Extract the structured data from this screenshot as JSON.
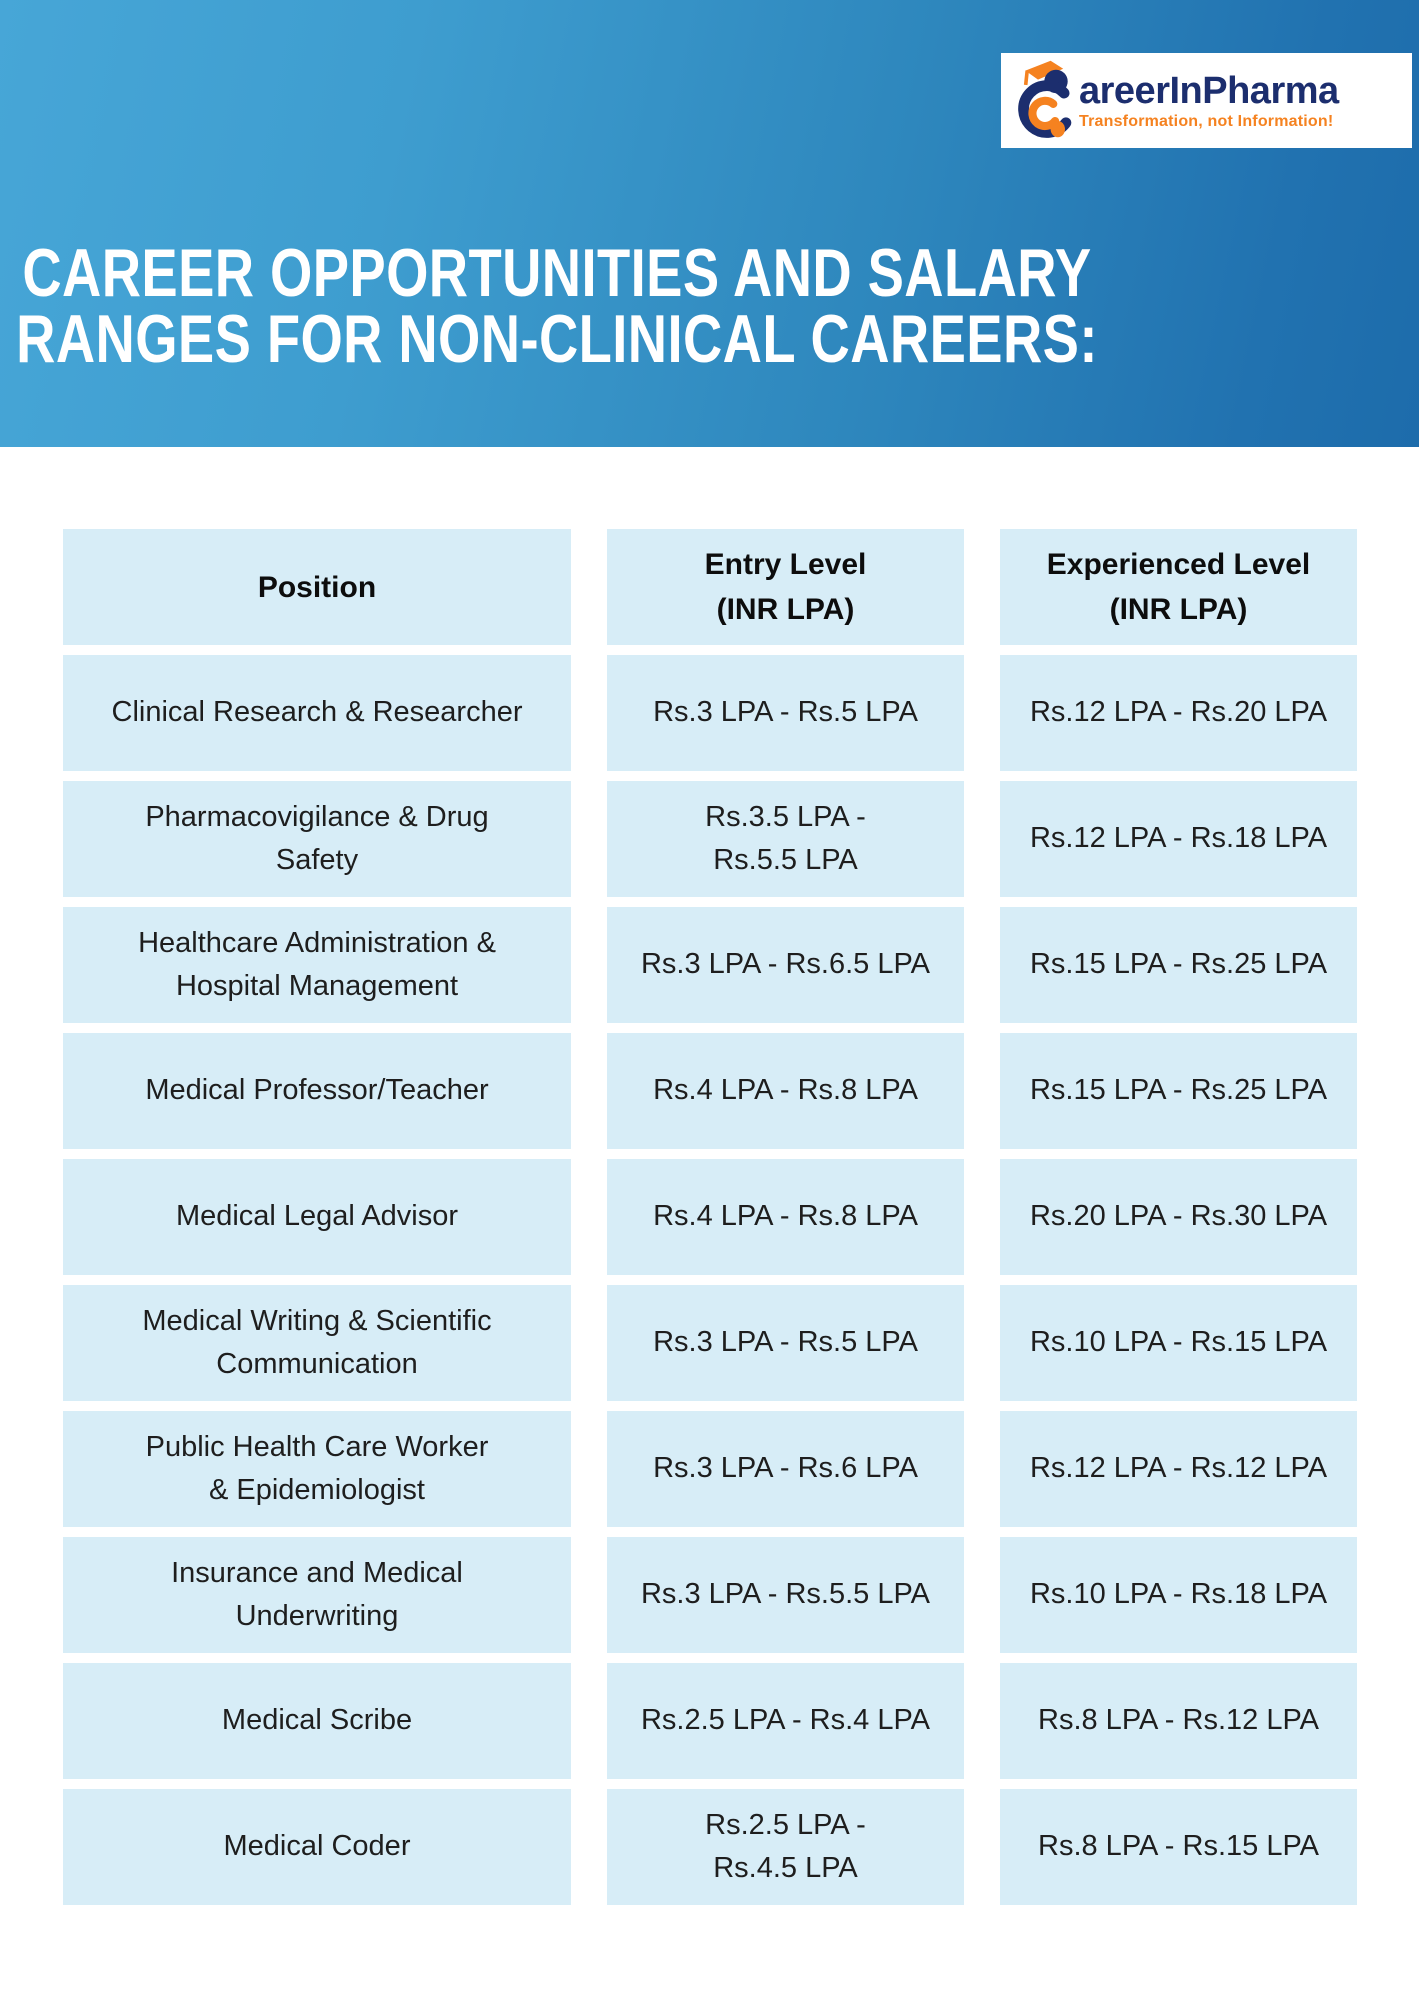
{
  "logo": {
    "brand": "areerInPharma",
    "tagline": "Transformation, not Information!"
  },
  "title": {
    "line1": "CAREER OPPORTUNITIES AND SALARY",
    "line2": "RANGES FOR NON-CLINICAL CAREERS:"
  },
  "table": {
    "headers": [
      "Position",
      "Entry Level\n(INR LPA)",
      "Experienced Level\n(INR LPA)"
    ],
    "rows": [
      {
        "position": "Clinical Research & Researcher",
        "entry": "Rs.3 LPA - Rs.5 LPA",
        "experienced": "Rs.12 LPA - Rs.20 LPA"
      },
      {
        "position": "Pharmacovigilance & Drug\nSafety",
        "entry": "Rs.3.5 LPA -\nRs.5.5 LPA",
        "experienced": "Rs.12 LPA - Rs.18 LPA"
      },
      {
        "position": "Healthcare Administration &\nHospital Management",
        "entry": "Rs.3 LPA - Rs.6.5 LPA",
        "experienced": "Rs.15 LPA - Rs.25 LPA"
      },
      {
        "position": "Medical Professor/Teacher",
        "entry": "Rs.4 LPA - Rs.8 LPA",
        "experienced": "Rs.15 LPA - Rs.25 LPA"
      },
      {
        "position": "Medical Legal Advisor",
        "entry": "Rs.4 LPA - Rs.8 LPA",
        "experienced": "Rs.20 LPA - Rs.30 LPA"
      },
      {
        "position": "Medical Writing & Scientific\nCommunication",
        "entry": "Rs.3 LPA - Rs.5 LPA",
        "experienced": "Rs.10 LPA - Rs.15 LPA"
      },
      {
        "position": "Public Health Care Worker\n& Epidemiologist",
        "entry": "Rs.3 LPA - Rs.6 LPA",
        "experienced": "Rs.12 LPA - Rs.12 LPA"
      },
      {
        "position": "Insurance and Medical\nUnderwriting",
        "entry": "Rs.3 LPA - Rs.5.5 LPA",
        "experienced": "Rs.10 LPA - Rs.18 LPA"
      },
      {
        "position": "Medical Scribe",
        "entry": "Rs.2.5 LPA - Rs.4 LPA",
        "experienced": "Rs.8 LPA - Rs.12 LPA"
      },
      {
        "position": "Medical Coder",
        "entry": "Rs.2.5 LPA -\nRs.4.5 LPA",
        "experienced": "Rs.8 LPA - Rs.15 LPA"
      }
    ]
  },
  "colors": {
    "banner_left": "#47a6d7",
    "banner_right": "#1d6cab",
    "cell_bg": "#d7edf7",
    "brand_navy": "#1c2e6e",
    "brand_orange": "#f58220",
    "title_text": "#ffffff",
    "cell_text": "#1e1e1e"
  }
}
